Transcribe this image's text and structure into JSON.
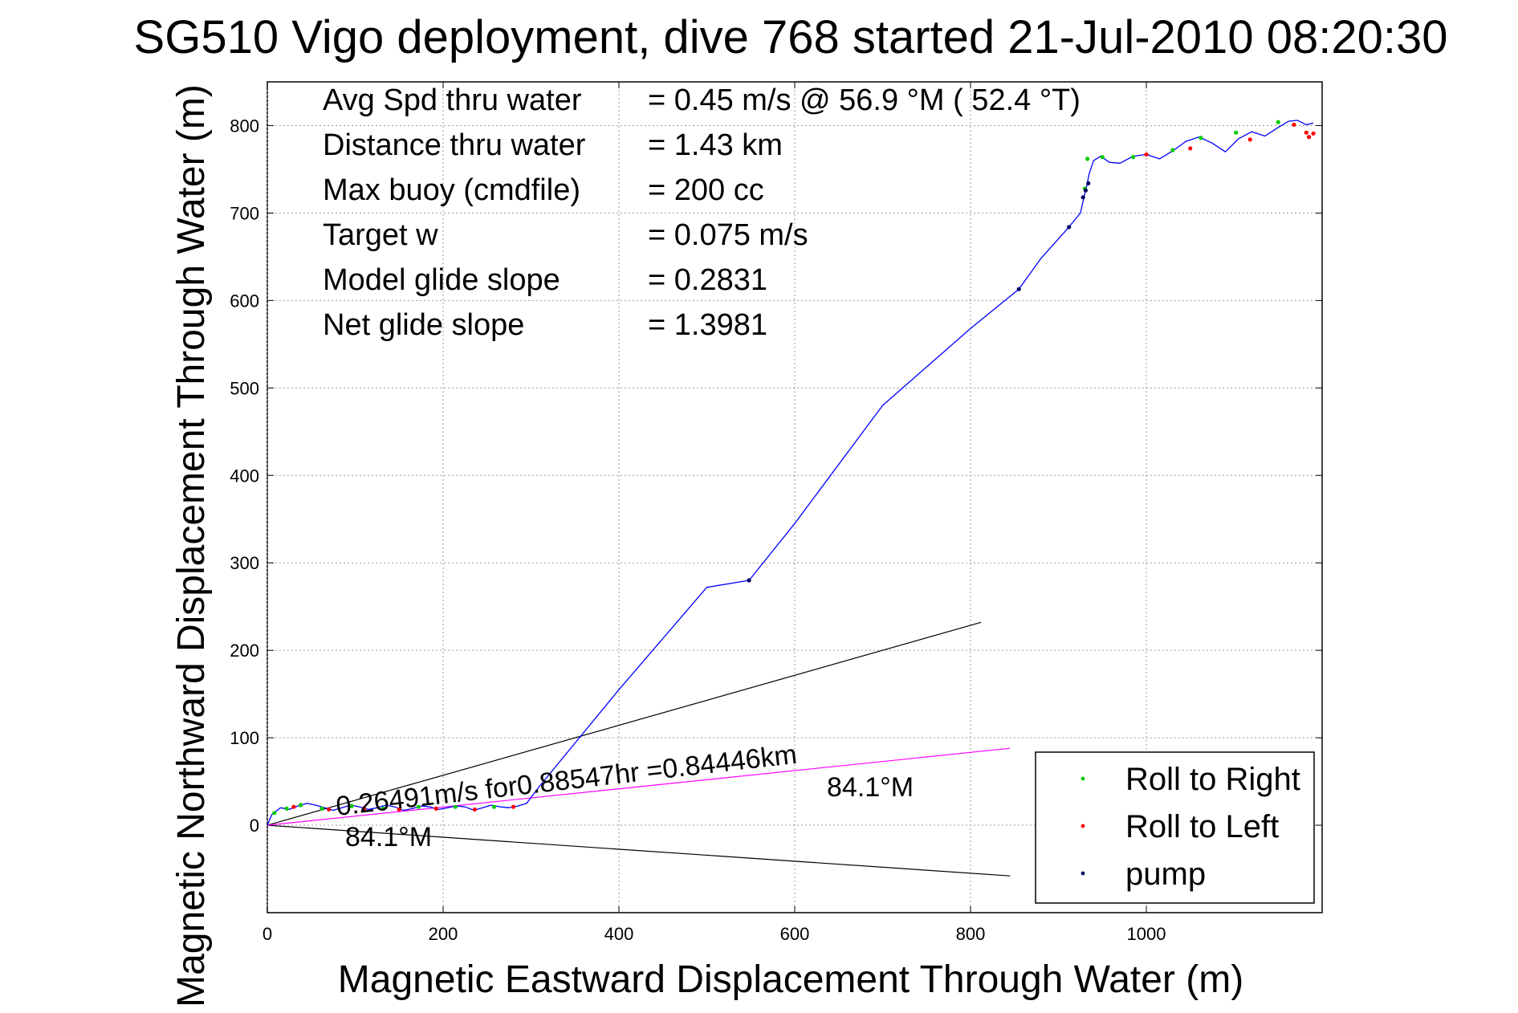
{
  "colors": {
    "track": "#0000ff",
    "roll_right": "#00cc00",
    "roll_left": "#ff0000",
    "pump": "#000066",
    "mean_vector": "#ff00ff",
    "bounds": "#000000"
  },
  "chart_data": {
    "type": "line",
    "title": "SG510 Vigo deployment, dive 768 started 21-Jul-2010 08:20:30",
    "xlabel": "Magnetic Eastward Displacement Through Water (m)",
    "ylabel": "Magnetic Northward Displacement Through Water (m)",
    "xlim": [
      0,
      1200
    ],
    "ylim": [
      -100,
      850
    ],
    "grid": true,
    "xticks": [
      "0",
      "200",
      "400",
      "600",
      "800",
      "1000"
    ],
    "yticks": [
      "0",
      "100",
      "200",
      "300",
      "400",
      "500",
      "600",
      "700",
      "800"
    ],
    "stats": [
      {
        "label": "Avg Spd thru water",
        "value": "=  0.45 m/s @  56.9 °M ( 52.4 °T)"
      },
      {
        "label": "Distance thru water",
        "value": "=  1.43 km"
      },
      {
        "label": "Max buoy (cmdfile)",
        "value": "= 200 cc"
      },
      {
        "label": "Target w",
        "value": "= 0.075 m/s"
      },
      {
        "label": "Model glide slope",
        "value": "= 0.2831"
      },
      {
        "label": "Net glide slope",
        "value": "= 1.3981"
      }
    ],
    "annotations": {
      "mean_vector_text": "0.26491m/s for0.88547hr =0.84446km",
      "heading_upper": "84.1°M",
      "heading_lower": "84.1°M"
    },
    "legend": {
      "placement": "bottom-right",
      "entries": [
        "Roll to Right",
        "Roll to Left",
        "pump"
      ]
    },
    "series": [
      {
        "name": "track",
        "x": [
          0,
          5,
          15,
          25,
          35,
          45,
          55,
          65,
          75,
          85,
          95,
          105,
          115,
          125,
          135,
          145,
          155,
          165,
          175,
          185,
          195,
          205,
          215,
          225,
          235,
          245,
          255,
          265,
          275,
          285,
          295,
          310,
          400,
          500,
          548,
          600,
          700,
          800,
          855,
          880,
          912,
          925,
          930,
          932,
          935,
          940,
          948,
          958,
          970,
          985,
          1000,
          1015,
          1030,
          1045,
          1060,
          1075,
          1090,
          1105,
          1120,
          1135,
          1150,
          1162,
          1172,
          1182,
          1190
        ],
        "y": [
          0,
          12,
          20,
          18,
          22,
          25,
          23,
          20,
          17,
          20,
          23,
          21,
          18,
          20,
          23,
          21,
          17,
          19,
          22,
          21,
          18,
          20,
          22,
          21,
          17,
          20,
          23,
          21,
          20,
          22,
          25,
          45,
          155,
          272,
          280,
          345,
          480,
          568,
          613,
          648,
          684,
          700,
          722,
          730,
          745,
          760,
          765,
          758,
          757,
          765,
          767,
          762,
          771,
          782,
          787,
          780,
          770,
          785,
          793,
          788,
          798,
          805,
          806,
          801,
          803
        ]
      },
      {
        "name": "Roll to Right",
        "x": [
          8,
          22,
          38,
          62,
          96,
          132,
          172,
          214,
          258,
          930,
          933,
          950,
          985,
          1030,
          1062,
          1102,
          1150
        ],
        "y": [
          14,
          19,
          23,
          19,
          22,
          19,
          21,
          21,
          21,
          728,
          762,
          764,
          764,
          772,
          786,
          792,
          804
        ]
      },
      {
        "name": "Roll to Left",
        "x": [
          30,
          70,
          110,
          150,
          192,
          236,
          280,
          1000,
          1050,
          1118,
          1168,
          1182,
          1185,
          1190
        ],
        "y": [
          21,
          18,
          19,
          18,
          19,
          18,
          21,
          767,
          774,
          784,
          801,
          792,
          787,
          791
        ]
      },
      {
        "name": "pump",
        "x": [
          548,
          855,
          912,
          928,
          931,
          934
        ],
        "y": [
          280,
          613,
          684,
          718,
          726,
          734
        ]
      },
      {
        "name": "mean vector",
        "x": [
          0,
          845
        ],
        "y": [
          0,
          88
        ]
      },
      {
        "name": "upper bound",
        "x": [
          0,
          812
        ],
        "y": [
          0,
          232
        ]
      },
      {
        "name": "lower bound",
        "x": [
          0,
          845
        ],
        "y": [
          0,
          -58
        ]
      }
    ]
  }
}
